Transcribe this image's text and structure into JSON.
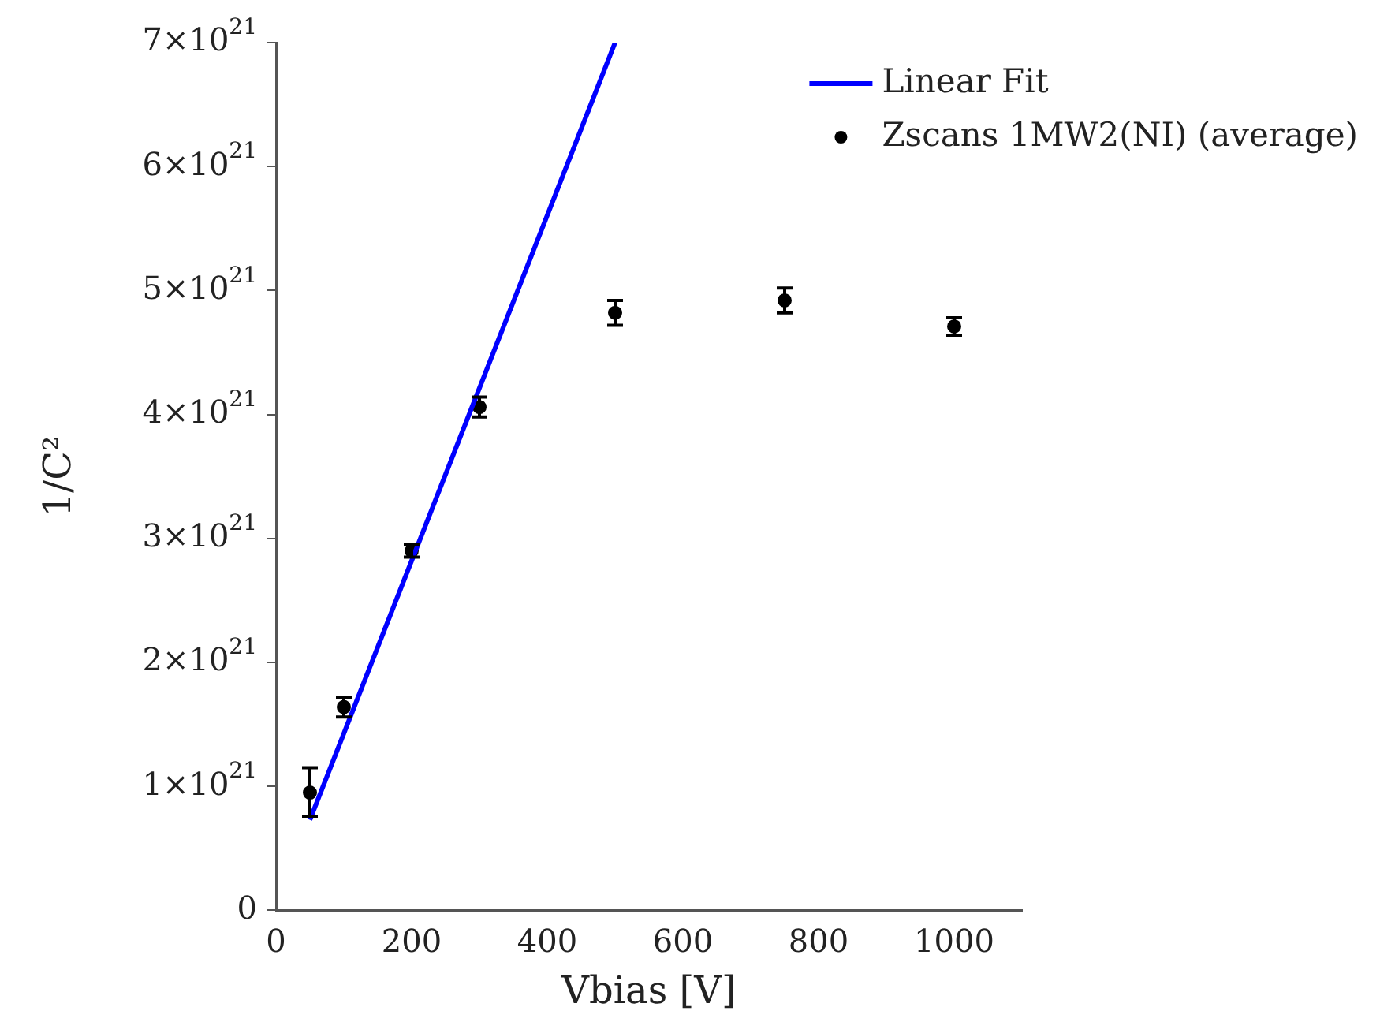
{
  "chart_data": {
    "type": "scatter",
    "xlabel": "Vbias [V]",
    "ylabel": "1/C²",
    "xlim": [
      0,
      1100
    ],
    "xticks": [
      0,
      200,
      400,
      600,
      800,
      1000
    ],
    "ylim": [
      0,
      7e+21
    ],
    "yticks": [
      0,
      {
        "value": 1e+21,
        "label": "1×10$^{21}$"
      },
      {
        "value": 2e+21,
        "label": "2×10$^{21}$"
      },
      {
        "value": 3e+21,
        "label": "3×10$^{21}$"
      },
      {
        "value": 4e+21,
        "label": "4×10$^{21}$"
      },
      {
        "value": 5e+21,
        "label": "5×10$^{21}$"
      },
      {
        "value": 6e+21,
        "label": "6×10$^{21}$"
      },
      {
        "value": 7e+21,
        "label": "7×10$^{21}$"
      }
    ],
    "grid": false,
    "legend": "top right",
    "series": [
      {
        "name": "Linear Fit",
        "type": "line",
        "color": "#0000ff",
        "marker": "none",
        "line_style": "solid",
        "x": [
          50,
          500
        ],
        "values": [
          7.3e+20,
          7e+21
        ]
      },
      {
        "name": "Zscans 1MW2(NI) (average)",
        "type": "scatter",
        "color": "#000000",
        "marker": "circle",
        "x": [
          50,
          100,
          200,
          300,
          500,
          750,
          1000
        ],
        "values": [
          9.5e+20,
          1.64e+21,
          2.9e+21,
          4.06e+21,
          4.82e+21,
          4.92e+21,
          4.71e+21
        ],
        "errors": [
          [
            7.6e+20,
            1.15e+21
          ],
          8e+19,
          5e+19,
          8e+19,
          1e+20,
          1e+20,
          7e+19
        ]
      }
    ]
  }
}
